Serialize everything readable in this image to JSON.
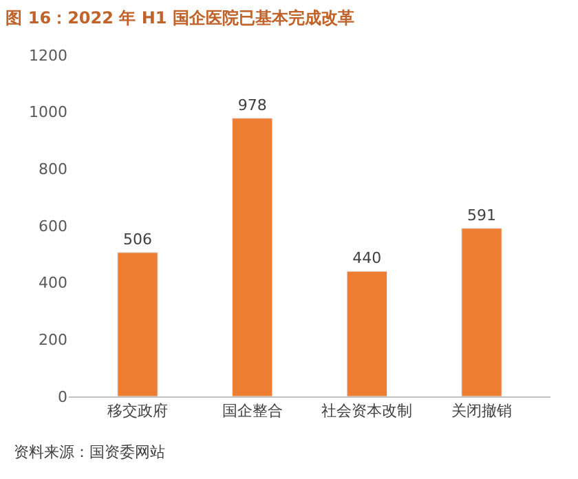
{
  "chart_data": {
    "type": "bar",
    "title": "图 16：2022 年 H1 国企医院已基本完成改革",
    "categories": [
      "移交政府",
      "国企整合",
      "社会资本改制",
      "关闭撤销"
    ],
    "values": [
      506,
      978,
      440,
      591
    ],
    "color": "#ed7d31",
    "ylim": [
      0,
      1200
    ],
    "yticks": [
      0,
      200,
      400,
      600,
      800,
      1000,
      1200
    ],
    "legend": false,
    "data_labels": true,
    "annotations": [
      "资料来源：国资委网站"
    ]
  }
}
